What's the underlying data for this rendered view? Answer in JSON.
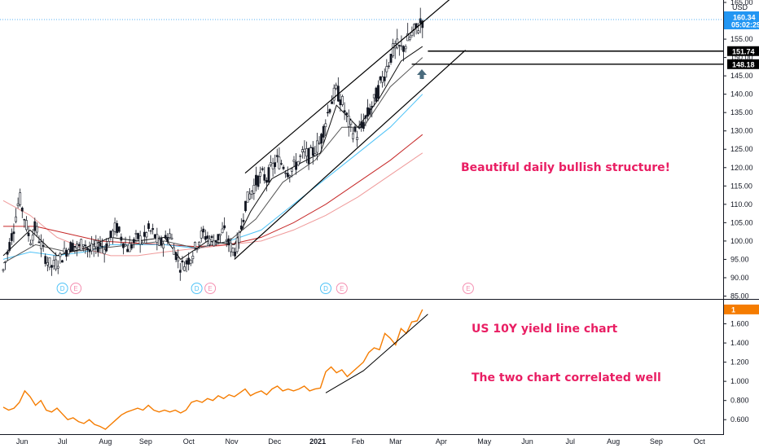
{
  "chart_data": [
    {
      "type": "candlestick",
      "currency": "USD",
      "y_range": [
        85,
        165
      ],
      "y_ticks": [
        85,
        90,
        95,
        100,
        105,
        110,
        115,
        120,
        125,
        130,
        135,
        140,
        145,
        150,
        155,
        160,
        165
      ],
      "y_tick_labels": [
        "85.00",
        "90.00",
        "95.00",
        "100.00",
        "105.00",
        "110.00",
        "115.00",
        "120.00",
        "125.00",
        "130.00",
        "135.00",
        "140.00",
        "145.00",
        "150.00",
        "155.00",
        "160.00",
        "165.00"
      ],
      "x_labels": [
        {
          "label": "Jun",
          "t": 0.035
        },
        {
          "label": "Jul",
          "t": 0.11
        },
        {
          "label": "Aug",
          "t": 0.19
        },
        {
          "label": "Sep",
          "t": 0.265
        },
        {
          "label": "Oct",
          "t": 0.345
        },
        {
          "label": "Nov",
          "t": 0.425
        },
        {
          "label": "Dec",
          "t": 0.505
        },
        {
          "label": "2021",
          "t": 0.585
        },
        {
          "label": "Feb",
          "t": 0.66
        },
        {
          "label": "Mar",
          "t": 0.73
        },
        {
          "label": "Apr",
          "t": 0.815
        },
        {
          "label": "May",
          "t": 0.895
        },
        {
          "label": "Jun",
          "t": 0.975
        },
        {
          "label": "Jul",
          "t": 1.055
        },
        {
          "label": "Aug",
          "t": 1.135
        },
        {
          "label": "Sep",
          "t": 1.215
        },
        {
          "label": "Oct",
          "t": 1.295
        }
      ],
      "price_path": [
        [
          0,
          92
        ],
        [
          0.01,
          98
        ],
        [
          0.02,
          104
        ],
        [
          0.03,
          112
        ],
        [
          0.04,
          106
        ],
        [
          0.05,
          100
        ],
        [
          0.06,
          104
        ],
        [
          0.07,
          99
        ],
        [
          0.08,
          95
        ],
        [
          0.09,
          93
        ],
        [
          0.1,
          94
        ],
        [
          0.11,
          96
        ],
        [
          0.12,
          98
        ],
        [
          0.13,
          99
        ],
        [
          0.14,
          98
        ],
        [
          0.15,
          100
        ],
        [
          0.16,
          97
        ],
        [
          0.17,
          98
        ],
        [
          0.18,
          99
        ],
        [
          0.19,
          98
        ],
        [
          0.2,
          101
        ],
        [
          0.21,
          104
        ],
        [
          0.22,
          101
        ],
        [
          0.23,
          98
        ],
        [
          0.24,
          99
        ],
        [
          0.25,
          101
        ],
        [
          0.26,
          100
        ],
        [
          0.27,
          103
        ],
        [
          0.28,
          102
        ],
        [
          0.29,
          99
        ],
        [
          0.3,
          100
        ],
        [
          0.31,
          102
        ],
        [
          0.32,
          97
        ],
        [
          0.33,
          93
        ],
        [
          0.34,
          94
        ],
        [
          0.35,
          96
        ],
        [
          0.36,
          99
        ],
        [
          0.37,
          102
        ],
        [
          0.38,
          101
        ],
        [
          0.39,
          100
        ],
        [
          0.4,
          101
        ],
        [
          0.41,
          103
        ],
        [
          0.42,
          99
        ],
        [
          0.43,
          97
        ],
        [
          0.44,
          101
        ],
        [
          0.45,
          110
        ],
        [
          0.46,
          113
        ],
        [
          0.47,
          116
        ],
        [
          0.48,
          118
        ],
        [
          0.49,
          117
        ],
        [
          0.5,
          120
        ],
        [
          0.51,
          122
        ],
        [
          0.52,
          121
        ],
        [
          0.53,
          119
        ],
        [
          0.54,
          120
        ],
        [
          0.55,
          122
        ],
        [
          0.56,
          124
        ],
        [
          0.57,
          123
        ],
        [
          0.58,
          125
        ],
        [
          0.59,
          127
        ],
        [
          0.6,
          133
        ],
        [
          0.61,
          138
        ],
        [
          0.62,
          141
        ],
        [
          0.63,
          138
        ],
        [
          0.64,
          133
        ],
        [
          0.65,
          130
        ],
        [
          0.66,
          129
        ],
        [
          0.67,
          132
        ],
        [
          0.68,
          135
        ],
        [
          0.69,
          138
        ],
        [
          0.7,
          142
        ],
        [
          0.71,
          146
        ],
        [
          0.72,
          150
        ],
        [
          0.73,
          153
        ],
        [
          0.74,
          152
        ],
        [
          0.75,
          154
        ],
        [
          0.76,
          156
        ],
        [
          0.77,
          158
        ],
        [
          0.78,
          160.3
        ]
      ],
      "ma_fast": [
        [
          0,
          96
        ],
        [
          0.05,
          103
        ],
        [
          0.1,
          96
        ],
        [
          0.15,
          98
        ],
        [
          0.2,
          101
        ],
        [
          0.25,
          100
        ],
        [
          0.3,
          101
        ],
        [
          0.33,
          95
        ],
        [
          0.38,
          100
        ],
        [
          0.43,
          99
        ],
        [
          0.46,
          108
        ],
        [
          0.5,
          117
        ],
        [
          0.55,
          121
        ],
        [
          0.59,
          124
        ],
        [
          0.62,
          137
        ],
        [
          0.66,
          131
        ],
        [
          0.7,
          139
        ],
        [
          0.74,
          149
        ],
        [
          0.78,
          153
        ]
      ],
      "ma_mid": [
        [
          0,
          94
        ],
        [
          0.06,
          99
        ],
        [
          0.12,
          97
        ],
        [
          0.18,
          98
        ],
        [
          0.24,
          99
        ],
        [
          0.3,
          100
        ],
        [
          0.36,
          98
        ],
        [
          0.42,
          100
        ],
        [
          0.47,
          106
        ],
        [
          0.52,
          116
        ],
        [
          0.58,
          122
        ],
        [
          0.63,
          131
        ],
        [
          0.67,
          131
        ],
        [
          0.72,
          142
        ],
        [
          0.78,
          150
        ]
      ],
      "ma_cyan": [
        [
          0,
          95
        ],
        [
          0.05,
          97
        ],
        [
          0.1,
          96
        ],
        [
          0.15,
          97
        ],
        [
          0.2,
          99
        ],
        [
          0.25,
          99
        ],
        [
          0.3,
          99
        ],
        [
          0.36,
          98
        ],
        [
          0.42,
          100
        ],
        [
          0.48,
          103
        ],
        [
          0.54,
          110
        ],
        [
          0.6,
          117
        ],
        [
          0.66,
          124
        ],
        [
          0.72,
          131
        ],
        [
          0.78,
          140
        ]
      ],
      "ma_red": [
        [
          0,
          104
        ],
        [
          0.06,
          104
        ],
        [
          0.12,
          102
        ],
        [
          0.18,
          100
        ],
        [
          0.24,
          99.5
        ],
        [
          0.3,
          99
        ],
        [
          0.36,
          98.5
        ],
        [
          0.42,
          99
        ],
        [
          0.48,
          101
        ],
        [
          0.54,
          105
        ],
        [
          0.6,
          110
        ],
        [
          0.66,
          116
        ],
        [
          0.72,
          122
        ],
        [
          0.78,
          129
        ]
      ],
      "ma_pink": [
        [
          0,
          111
        ],
        [
          0.05,
          107
        ],
        [
          0.1,
          101
        ],
        [
          0.15,
          98
        ],
        [
          0.2,
          96
        ],
        [
          0.25,
          96
        ],
        [
          0.3,
          97
        ],
        [
          0.36,
          98
        ],
        [
          0.42,
          99
        ],
        [
          0.48,
          100
        ],
        [
          0.54,
          103
        ],
        [
          0.6,
          107
        ],
        [
          0.66,
          112
        ],
        [
          0.72,
          118
        ],
        [
          0.78,
          124
        ]
      ],
      "channel_upper": [
        [
          0.45,
          118.5
        ],
        [
          0.84,
          167
        ]
      ],
      "channel_lower": [
        [
          0.43,
          95
        ],
        [
          0.86,
          152
        ]
      ],
      "ray_151": [
        [
          0.79,
          151.74
        ],
        [
          1.35,
          151.74
        ]
      ],
      "ray_148": [
        [
          0.76,
          148.18
        ],
        [
          1.35,
          148.18
        ]
      ],
      "current_price_label": "160.34",
      "countdown_label": "05:02:29",
      "current_price": 160.34,
      "price_tags": [
        {
          "value": 151.74,
          "label": "151.74"
        },
        {
          "value": 148.18,
          "label": "148.18"
        }
      ],
      "events": [
        {
          "t": 0.11,
          "label": "D",
          "kind": "dividend"
        },
        {
          "t": 0.135,
          "label": "E",
          "kind": "earnings"
        },
        {
          "t": 0.36,
          "label": "D",
          "kind": "dividend"
        },
        {
          "t": 0.385,
          "label": "E",
          "kind": "earnings"
        },
        {
          "t": 0.6,
          "label": "D",
          "kind": "dividend"
        },
        {
          "t": 0.63,
          "label": "E",
          "kind": "earnings"
        },
        {
          "t": 0.865,
          "label": "E",
          "kind": "earnings"
        }
      ],
      "annotation": "Beautiful daily bullish structure!"
    },
    {
      "type": "line",
      "y_range": [
        0.5,
        1.8
      ],
      "y_ticks": [
        0.6,
        0.8,
        1.0,
        1.2,
        1.4,
        1.6
      ],
      "y_tick_labels": [
        "0.600",
        "0.800",
        "1.000",
        "1.200",
        "1.400",
        "1.600"
      ],
      "series": [
        {
          "color": "#f57c00",
          "points": [
            [
              0,
              0.73
            ],
            [
              0.01,
              0.7
            ],
            [
              0.02,
              0.72
            ],
            [
              0.03,
              0.78
            ],
            [
              0.04,
              0.9
            ],
            [
              0.05,
              0.84
            ],
            [
              0.06,
              0.75
            ],
            [
              0.07,
              0.8
            ],
            [
              0.08,
              0.7
            ],
            [
              0.09,
              0.68
            ],
            [
              0.1,
              0.72
            ],
            [
              0.11,
              0.66
            ],
            [
              0.12,
              0.6
            ],
            [
              0.13,
              0.62
            ],
            [
              0.14,
              0.58
            ],
            [
              0.15,
              0.56
            ],
            [
              0.16,
              0.6
            ],
            [
              0.17,
              0.55
            ],
            [
              0.18,
              0.53
            ],
            [
              0.19,
              0.5
            ],
            [
              0.2,
              0.55
            ],
            [
              0.21,
              0.6
            ],
            [
              0.22,
              0.65
            ],
            [
              0.23,
              0.68
            ],
            [
              0.24,
              0.7
            ],
            [
              0.25,
              0.72
            ],
            [
              0.26,
              0.7
            ],
            [
              0.27,
              0.75
            ],
            [
              0.28,
              0.7
            ],
            [
              0.29,
              0.68
            ],
            [
              0.3,
              0.7
            ],
            [
              0.31,
              0.68
            ],
            [
              0.32,
              0.7
            ],
            [
              0.33,
              0.67
            ],
            [
              0.34,
              0.7
            ],
            [
              0.35,
              0.78
            ],
            [
              0.36,
              0.8
            ],
            [
              0.37,
              0.78
            ],
            [
              0.38,
              0.82
            ],
            [
              0.39,
              0.8
            ],
            [
              0.4,
              0.85
            ],
            [
              0.41,
              0.82
            ],
            [
              0.42,
              0.86
            ],
            [
              0.43,
              0.84
            ],
            [
              0.44,
              0.88
            ],
            [
              0.45,
              0.92
            ],
            [
              0.46,
              0.85
            ],
            [
              0.47,
              0.88
            ],
            [
              0.48,
              0.9
            ],
            [
              0.49,
              0.86
            ],
            [
              0.5,
              0.92
            ],
            [
              0.51,
              0.95
            ],
            [
              0.52,
              0.9
            ],
            [
              0.53,
              0.92
            ],
            [
              0.54,
              0.9
            ],
            [
              0.55,
              0.92
            ],
            [
              0.56,
              0.95
            ],
            [
              0.57,
              0.9
            ],
            [
              0.58,
              0.92
            ],
            [
              0.59,
              0.93
            ],
            [
              0.6,
              1.1
            ],
            [
              0.61,
              1.15
            ],
            [
              0.62,
              1.09
            ],
            [
              0.63,
              1.12
            ],
            [
              0.64,
              1.05
            ],
            [
              0.65,
              1.1
            ],
            [
              0.66,
              1.15
            ],
            [
              0.67,
              1.2
            ],
            [
              0.68,
              1.3
            ],
            [
              0.69,
              1.35
            ],
            [
              0.7,
              1.33
            ],
            [
              0.71,
              1.5
            ],
            [
              0.72,
              1.45
            ],
            [
              0.73,
              1.38
            ],
            [
              0.74,
              1.55
            ],
            [
              0.75,
              1.5
            ],
            [
              0.76,
              1.62
            ],
            [
              0.77,
              1.63
            ],
            [
              0.78,
              1.75
            ]
          ]
        }
      ],
      "trendline": [
        [
          0.6,
          0.88
        ],
        [
          0.67,
          1.11
        ],
        [
          0.79,
          1.7
        ]
      ],
      "current_tag": "1",
      "annotations": [
        "US 10Y yield line chart",
        "The two chart correlated well"
      ]
    }
  ]
}
